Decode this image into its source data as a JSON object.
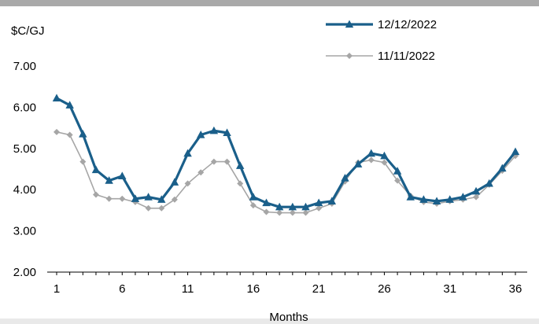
{
  "chart_data": {
    "type": "line",
    "title": "",
    "ylabel": "$C/GJ",
    "xlabel": "Months",
    "ylim": [
      2.0,
      7.0
    ],
    "y_ticks": [
      "2.00",
      "3.00",
      "4.00",
      "5.00",
      "6.00",
      "7.00"
    ],
    "x_ticks": [
      "1",
      "6",
      "11",
      "16",
      "21",
      "26",
      "31",
      "36"
    ],
    "legend_position": "top-right",
    "x": [
      1,
      2,
      3,
      4,
      5,
      6,
      7,
      8,
      9,
      10,
      11,
      12,
      13,
      14,
      15,
      16,
      17,
      18,
      19,
      20,
      21,
      22,
      23,
      24,
      25,
      26,
      27,
      28,
      29,
      30,
      31,
      32,
      33,
      34,
      35,
      36
    ],
    "series": [
      {
        "name": "12/12/2022",
        "color": "#1a5f8a",
        "marker": "triangle",
        "values": [
          6.22,
          6.05,
          5.35,
          4.48,
          4.22,
          4.33,
          3.78,
          3.82,
          3.76,
          4.18,
          4.88,
          5.33,
          5.43,
          5.38,
          4.58,
          3.82,
          3.68,
          3.58,
          3.58,
          3.58,
          3.68,
          3.72,
          4.28,
          4.62,
          4.88,
          4.82,
          4.45,
          3.82,
          3.76,
          3.72,
          3.76,
          3.82,
          3.96,
          4.15,
          4.52,
          4.92
        ]
      },
      {
        "name": "11/11/2022",
        "color": "#a6a6a6",
        "marker": "diamond",
        "values": [
          5.4,
          5.33,
          4.68,
          3.88,
          3.78,
          3.78,
          3.7,
          3.55,
          3.55,
          3.76,
          4.15,
          4.42,
          4.68,
          4.68,
          4.15,
          3.62,
          3.46,
          3.44,
          3.44,
          3.44,
          3.55,
          3.66,
          4.2,
          4.66,
          4.72,
          4.66,
          4.22,
          3.85,
          3.7,
          3.66,
          3.72,
          3.76,
          3.82,
          4.12,
          4.46,
          4.82
        ]
      }
    ]
  }
}
